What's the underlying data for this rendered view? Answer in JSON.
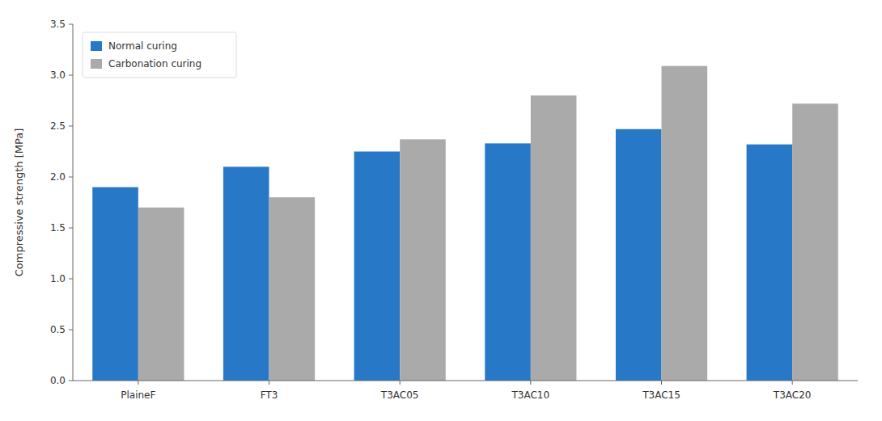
{
  "chart_data": {
    "type": "bar",
    "categories": [
      "PlaineF",
      "FT3",
      "T3AC05",
      "T3AC10",
      "T3AC15",
      "T3AC20"
    ],
    "series": [
      {
        "name": "Normal curing",
        "color": "#2878C8",
        "values": [
          1.9,
          2.1,
          2.25,
          2.33,
          2.47,
          2.32
        ]
      },
      {
        "name": "Carbonation curing",
        "color": "#AAAAAA",
        "values": [
          1.7,
          1.8,
          2.37,
          2.8,
          3.09,
          2.72
        ]
      }
    ],
    "ylabel": "Compressive strength [MPa]",
    "ylim": [
      0,
      3.5
    ],
    "yticks": [
      {
        "value": 0,
        "label": "0.0"
      },
      0.5,
      {
        "value": 1.0,
        "label": "1.0"
      },
      1.5,
      {
        "value": 2.0,
        "label": "2.0"
      },
      2.5,
      {
        "value": 3.0,
        "label": "3.0"
      },
      3.5
    ],
    "legend": "upper-left",
    "grid": false
  }
}
